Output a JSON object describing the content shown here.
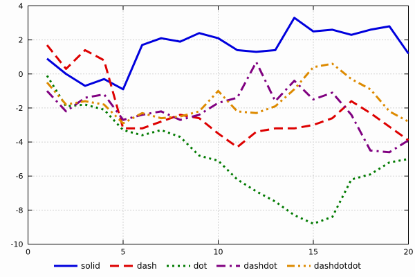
{
  "chart_data": {
    "type": "line",
    "x": [
      1,
      2,
      3,
      4,
      5,
      6,
      7,
      8,
      9,
      10,
      11,
      12,
      13,
      14,
      15,
      16,
      17,
      18,
      19,
      20
    ],
    "series": [
      {
        "name": "solid",
        "color": "#0000dd",
        "linestyle": "solid",
        "values": [
          0.9,
          0.0,
          -0.7,
          -0.3,
          -0.9,
          1.7,
          2.1,
          1.9,
          2.4,
          2.1,
          1.4,
          1.3,
          1.4,
          3.3,
          2.5,
          2.6,
          2.3,
          2.6,
          2.8,
          1.2
        ]
      },
      {
        "name": "dash",
        "color": "#dd0000",
        "linestyle": "dash",
        "values": [
          1.7,
          0.3,
          1.4,
          0.8,
          -3.2,
          -3.2,
          -2.8,
          -2.4,
          -2.6,
          -3.5,
          -4.3,
          -3.4,
          -3.2,
          -3.2,
          -3.0,
          -2.6,
          -1.6,
          -2.3,
          -3.1,
          -3.9
        ]
      },
      {
        "name": "dot",
        "color": "#007a00",
        "linestyle": "dot",
        "values": [
          -0.1,
          -1.9,
          -1.8,
          -2.1,
          -3.3,
          -3.6,
          -3.3,
          -3.7,
          -4.8,
          -5.1,
          -6.2,
          -6.9,
          -7.5,
          -8.3,
          -8.8,
          -8.4,
          -6.2,
          -5.9,
          -5.2,
          -5.0
        ]
      },
      {
        "name": "dashdot",
        "color": "#800080",
        "linestyle": "dashdot",
        "values": [
          -1.0,
          -2.2,
          -1.4,
          -1.2,
          -2.7,
          -2.4,
          -2.2,
          -2.7,
          -2.4,
          -1.7,
          -1.4,
          0.7,
          -1.6,
          -0.4,
          -1.5,
          -1.1,
          -2.4,
          -4.5,
          -4.6,
          -3.9
        ]
      },
      {
        "name": "dashdotdot",
        "color": "#dd8a00",
        "linestyle": "dashdotdot",
        "values": [
          -0.5,
          -1.8,
          -1.6,
          -1.8,
          -2.9,
          -2.3,
          -2.6,
          -2.5,
          -2.2,
          -1.0,
          -2.2,
          -2.3,
          -1.9,
          -0.9,
          0.4,
          0.6,
          -0.3,
          -0.9,
          -2.2,
          -2.8
        ]
      }
    ],
    "title": "",
    "xlabel": "",
    "ylabel": "",
    "xlim": [
      0,
      20
    ],
    "ylim": [
      -10,
      4
    ],
    "xticks": [
      0,
      5,
      10,
      15,
      20
    ],
    "yticks": [
      -10,
      -8,
      -6,
      -4,
      -2,
      0,
      2,
      4
    ],
    "grid": true,
    "grid_color": "#a8a8a8",
    "border_color": "#000000",
    "legend_position": "bottom",
    "legend_labels": [
      "solid",
      "dash",
      "dot",
      "dashdot",
      "dashdotdot"
    ]
  }
}
